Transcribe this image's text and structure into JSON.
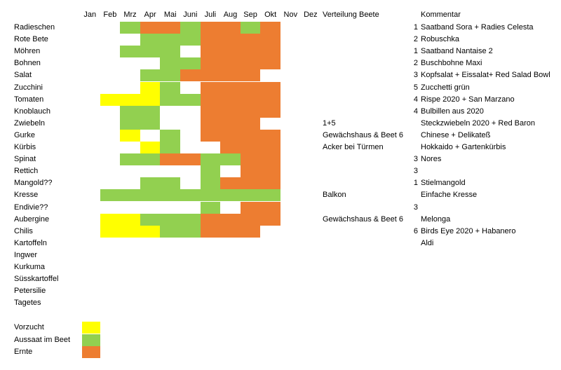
{
  "header": {
    "months": [
      "Jan",
      "Feb",
      "Mrz",
      "Apr",
      "Mai",
      "Juni",
      "Juli",
      "Aug",
      "Sep",
      "Okt",
      "Nov",
      "Dez"
    ],
    "verteilung": "Verteilung Beete",
    "kommentar": "Kommentar"
  },
  "legend": [
    {
      "label": "Vorzucht",
      "color": "#ffff00"
    },
    {
      "label": "Aussaat im Beet",
      "color": "#92d050"
    },
    {
      "label": "Ernte",
      "color": "#ed7d31"
    }
  ],
  "rows": [
    {
      "name": "Radieschen",
      "months": [
        null,
        null,
        1,
        2,
        2,
        1,
        2,
        2,
        1,
        2,
        null,
        null
      ],
      "beet": null,
      "nr": 1,
      "kommentar": "Saatband Sora + Radies Celesta"
    },
    {
      "name": "Rote Bete",
      "months": [
        null,
        null,
        null,
        1,
        1,
        1,
        2,
        2,
        2,
        2,
        null,
        null
      ],
      "beet": null,
      "nr": 2,
      "kommentar": "Robuschka"
    },
    {
      "name": "Möhren",
      "months": [
        null,
        null,
        1,
        1,
        1,
        null,
        2,
        2,
        2,
        2,
        null,
        null
      ],
      "beet": null,
      "nr": 1,
      "kommentar": "Saatband Nantaise 2"
    },
    {
      "name": "Bohnen",
      "months": [
        null,
        null,
        null,
        null,
        1,
        1,
        2,
        2,
        2,
        2,
        null,
        null
      ],
      "beet": null,
      "nr": 2,
      "kommentar": "Buschbohne Maxi"
    },
    {
      "name": "Salat",
      "months": [
        null,
        null,
        null,
        1,
        1,
        2,
        2,
        2,
        2,
        null,
        null,
        null
      ],
      "beet": null,
      "nr": 3,
      "kommentar": "Kopfsalat + Eissalat+ Red Salad Bowl"
    },
    {
      "name": "Zucchini",
      "months": [
        null,
        null,
        null,
        0,
        1,
        null,
        2,
        2,
        2,
        2,
        null,
        null
      ],
      "beet": null,
      "nr": 5,
      "kommentar": "Zucchetti grün"
    },
    {
      "name": "Tomaten",
      "months": [
        null,
        0,
        0,
        0,
        1,
        1,
        2,
        2,
        2,
        2,
        null,
        null
      ],
      "beet": null,
      "nr": 4,
      "kommentar": "Rispe 2020 +  San Marzano"
    },
    {
      "name": "Knoblauch",
      "months": [
        null,
        null,
        1,
        1,
        null,
        null,
        2,
        2,
        2,
        2,
        null,
        null
      ],
      "beet": null,
      "nr": 4,
      "kommentar": "Bulbillen aus 2020"
    },
    {
      "name": "Zwiebeln",
      "months": [
        null,
        null,
        1,
        1,
        null,
        null,
        2,
        2,
        2,
        null,
        null,
        null
      ],
      "beet": "1+5",
      "nr": null,
      "kommentar": "Steckzwiebeln 2020 + Red Baron"
    },
    {
      "name": "Gurke",
      "months": [
        null,
        null,
        0,
        null,
        1,
        null,
        2,
        2,
        2,
        2,
        null,
        null
      ],
      "beet": "Gewächshaus & Beet 6",
      "nr": null,
      "kommentar": "Chinese + Delikateß"
    },
    {
      "name": "Kürbis",
      "months": [
        null,
        null,
        null,
        0,
        1,
        null,
        null,
        2,
        2,
        2,
        null,
        null
      ],
      "beet": "Acker bei Türmen",
      "nr": null,
      "kommentar": "Hokkaido + Gartenkürbis"
    },
    {
      "name": "Spinat",
      "months": [
        null,
        null,
        1,
        1,
        2,
        2,
        1,
        1,
        2,
        2,
        null,
        null
      ],
      "beet": null,
      "nr": 3,
      "kommentar": "Nores"
    },
    {
      "name": "Rettich",
      "months": [
        null,
        null,
        null,
        null,
        null,
        null,
        1,
        null,
        2,
        2,
        null,
        null
      ],
      "beet": null,
      "nr": 3,
      "kommentar": null
    },
    {
      "name": "Mangold??",
      "months": [
        null,
        null,
        null,
        1,
        1,
        null,
        1,
        2,
        2,
        2,
        null,
        null
      ],
      "beet": null,
      "nr": 1,
      "kommentar": "Stielmangold"
    },
    {
      "name": "Kresse",
      "months": [
        null,
        1,
        1,
        1,
        1,
        1,
        1,
        1,
        1,
        1,
        null,
        null
      ],
      "beet": "Balkon",
      "nr": null,
      "kommentar": "Einfache Kresse"
    },
    {
      "name": "Endivie??",
      "months": [
        null,
        null,
        null,
        null,
        null,
        null,
        1,
        null,
        2,
        2,
        null,
        null
      ],
      "beet": null,
      "nr": 3,
      "kommentar": null
    },
    {
      "name": "Aubergine",
      "months": [
        null,
        0,
        0,
        1,
        1,
        1,
        2,
        2,
        2,
        2,
        null,
        null
      ],
      "beet": "Gewächshaus & Beet 6",
      "nr": null,
      "kommentar": "Melonga"
    },
    {
      "name": "Chilis",
      "months": [
        null,
        0,
        0,
        0,
        1,
        1,
        2,
        2,
        2,
        null,
        null,
        null
      ],
      "beet": null,
      "nr": 6,
      "kommentar": "Birds Eye 2020 + Habanero"
    },
    {
      "name": "Kartoffeln",
      "months": [
        null,
        null,
        null,
        null,
        null,
        null,
        null,
        null,
        null,
        null,
        null,
        null
      ],
      "beet": null,
      "nr": null,
      "kommentar": "Aldi"
    },
    {
      "name": "Ingwer",
      "months": [
        null,
        null,
        null,
        null,
        null,
        null,
        null,
        null,
        null,
        null,
        null,
        null
      ],
      "beet": null,
      "nr": null,
      "kommentar": null
    },
    {
      "name": "Kurkuma",
      "months": [
        null,
        null,
        null,
        null,
        null,
        null,
        null,
        null,
        null,
        null,
        null,
        null
      ],
      "beet": null,
      "nr": null,
      "kommentar": null
    },
    {
      "name": "Süsskartoffel",
      "months": [
        null,
        null,
        null,
        null,
        null,
        null,
        null,
        null,
        null,
        null,
        null,
        null
      ],
      "beet": null,
      "nr": null,
      "kommentar": null
    },
    {
      "name": "Petersilie",
      "months": [
        null,
        null,
        null,
        null,
        null,
        null,
        null,
        null,
        null,
        null,
        null,
        null
      ],
      "beet": null,
      "nr": null,
      "kommentar": null
    },
    {
      "name": "Tagetes",
      "months": [
        null,
        null,
        null,
        null,
        null,
        null,
        null,
        null,
        null,
        null,
        null,
        null
      ],
      "beet": null,
      "nr": null,
      "kommentar": null
    }
  ]
}
